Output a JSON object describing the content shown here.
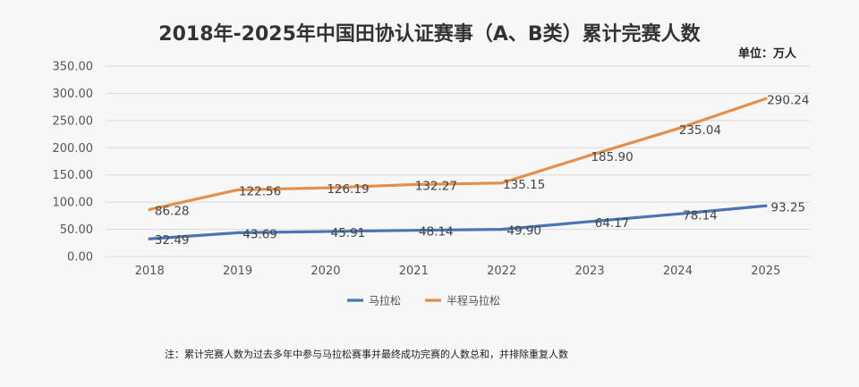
{
  "header": {
    "title": "2018年-2025年中国田协认证赛事（A、B类）累计完赛人数",
    "unit": "单位：万人"
  },
  "footer": {
    "note": "注：累计完赛人数为过去多年中参与马拉松赛事并最终成功完赛的人数总和，并排除重复人数"
  },
  "chart_data": {
    "type": "line",
    "title": "2018年-2025年中国田协认证赛事（A、B类）累计完赛人数",
    "x": [
      "2018",
      "2019",
      "2020",
      "2021",
      "2022",
      "2023",
      "2024",
      "2025"
    ],
    "yticks": [
      "0.00",
      "50.00",
      "100.00",
      "150.00",
      "200.00",
      "250.00",
      "300.00",
      "350.00"
    ],
    "ylim": [
      0,
      350
    ],
    "grid": true,
    "legend_position": "bottom",
    "series": [
      {
        "name": "马拉松",
        "color": "#4a74b4",
        "values": [
          32.49,
          43.69,
          45.91,
          48.14,
          49.9,
          64.17,
          78.14,
          93.25
        ],
        "labels": [
          "32.49",
          "43.69",
          "45.91",
          "48.14",
          "49.90",
          "64.17",
          "78.14",
          "93.25"
        ]
      },
      {
        "name": "半程马拉松",
        "color": "#e3914a",
        "values": [
          86.28,
          122.56,
          126.19,
          132.27,
          135.15,
          185.9,
          235.04,
          290.24
        ],
        "labels": [
          "86.28",
          "122.56",
          "126.19",
          "132.27",
          "135.15",
          "185.90",
          "235.04",
          "290.24"
        ]
      }
    ]
  }
}
